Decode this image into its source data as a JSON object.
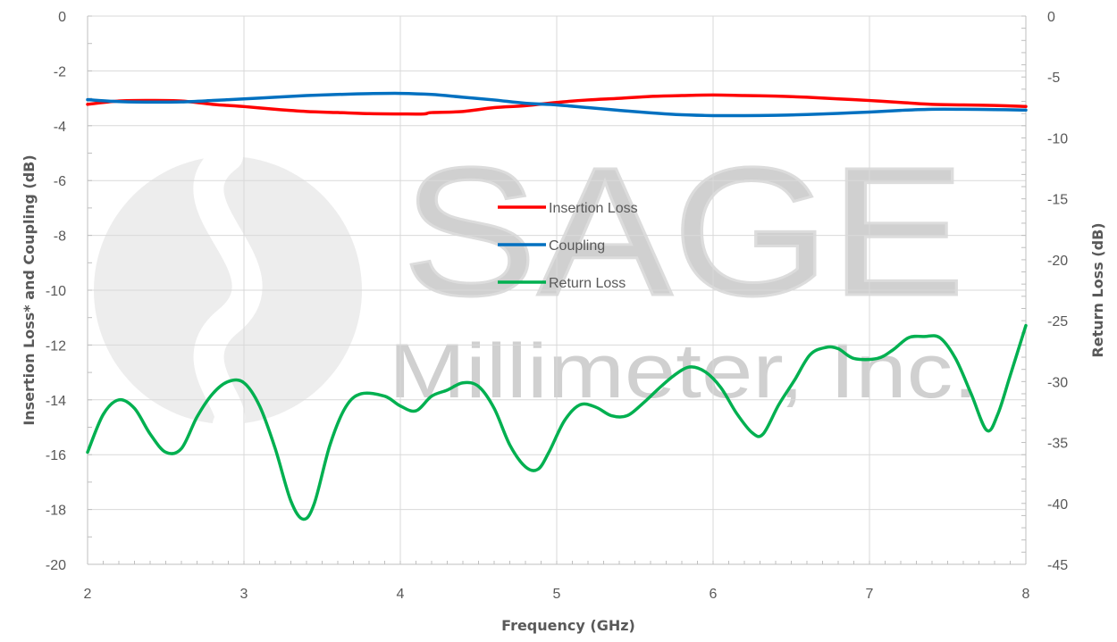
{
  "chart_data": {
    "type": "line",
    "watermark": {
      "line1": "SAGE",
      "line2": "Millimeter, Inc.",
      "color": "#d3d3d3"
    },
    "xlabel": "Frequency (GHz)",
    "ylabel_left": "Insertion Loss* and Coupling (dB)",
    "ylabel_right": "Return Loss (dB)",
    "xlim": [
      2,
      8
    ],
    "ylim_left": [
      -20,
      0
    ],
    "ylim_right": [
      -45,
      0
    ],
    "x_ticks": [
      2,
      3,
      4,
      5,
      6,
      7,
      8
    ],
    "y_left_ticks": [
      0,
      -2,
      -4,
      -6,
      -8,
      -10,
      -12,
      -14,
      -16,
      -18,
      -20
    ],
    "y_right_ticks": [
      0,
      -5,
      -10,
      -15,
      -20,
      -25,
      -30,
      -35,
      -40,
      -45
    ],
    "grid": true,
    "legend_position": "center",
    "series": [
      {
        "name": "Insertion Loss",
        "axis": "left",
        "color": "#ff0000",
        "points": [
          [
            2.0,
            -3.22
          ],
          [
            2.2,
            -3.1
          ],
          [
            2.4,
            -3.08
          ],
          [
            2.6,
            -3.1
          ],
          [
            2.8,
            -3.22
          ],
          [
            3.0,
            -3.3
          ],
          [
            3.2,
            -3.4
          ],
          [
            3.4,
            -3.48
          ],
          [
            3.6,
            -3.52
          ],
          [
            3.8,
            -3.56
          ],
          [
            4.0,
            -3.57
          ],
          [
            4.15,
            -3.57
          ],
          [
            4.2,
            -3.52
          ],
          [
            4.4,
            -3.48
          ],
          [
            4.6,
            -3.34
          ],
          [
            4.8,
            -3.27
          ],
          [
            5.0,
            -3.15
          ],
          [
            5.2,
            -3.06
          ],
          [
            5.4,
            -3.0
          ],
          [
            5.6,
            -2.93
          ],
          [
            5.8,
            -2.9
          ],
          [
            6.0,
            -2.88
          ],
          [
            6.2,
            -2.9
          ],
          [
            6.4,
            -2.92
          ],
          [
            6.6,
            -2.96
          ],
          [
            6.8,
            -3.02
          ],
          [
            7.0,
            -3.08
          ],
          [
            7.2,
            -3.15
          ],
          [
            7.4,
            -3.22
          ],
          [
            7.6,
            -3.24
          ],
          [
            7.8,
            -3.26
          ],
          [
            8.0,
            -3.3
          ]
        ]
      },
      {
        "name": "Coupling",
        "axis": "left",
        "color": "#0070c0",
        "points": [
          [
            2.0,
            -3.05
          ],
          [
            2.2,
            -3.12
          ],
          [
            2.4,
            -3.14
          ],
          [
            2.6,
            -3.13
          ],
          [
            2.8,
            -3.08
          ],
          [
            3.0,
            -3.02
          ],
          [
            3.2,
            -2.96
          ],
          [
            3.4,
            -2.9
          ],
          [
            3.6,
            -2.86
          ],
          [
            3.8,
            -2.83
          ],
          [
            4.0,
            -2.82
          ],
          [
            4.2,
            -2.86
          ],
          [
            4.4,
            -2.96
          ],
          [
            4.6,
            -3.06
          ],
          [
            4.8,
            -3.18
          ],
          [
            5.0,
            -3.24
          ],
          [
            5.2,
            -3.34
          ],
          [
            5.4,
            -3.44
          ],
          [
            5.6,
            -3.53
          ],
          [
            5.8,
            -3.6
          ],
          [
            6.0,
            -3.63
          ],
          [
            6.2,
            -3.63
          ],
          [
            6.4,
            -3.62
          ],
          [
            6.6,
            -3.59
          ],
          [
            6.8,
            -3.55
          ],
          [
            7.0,
            -3.5
          ],
          [
            7.2,
            -3.44
          ],
          [
            7.4,
            -3.4
          ],
          [
            7.6,
            -3.4
          ],
          [
            7.8,
            -3.41
          ],
          [
            8.0,
            -3.43
          ]
        ]
      },
      {
        "name": "Return Loss",
        "axis": "right",
        "color": "#00b050",
        "points": [
          [
            2.0,
            -35.8
          ],
          [
            2.1,
            -32.7
          ],
          [
            2.2,
            -31.5
          ],
          [
            2.3,
            -32.2
          ],
          [
            2.4,
            -34.3
          ],
          [
            2.5,
            -35.8
          ],
          [
            2.6,
            -35.5
          ],
          [
            2.7,
            -32.9
          ],
          [
            2.8,
            -31.0
          ],
          [
            2.9,
            -30.0
          ],
          [
            3.0,
            -30.1
          ],
          [
            3.1,
            -32.0
          ],
          [
            3.2,
            -35.5
          ],
          [
            3.3,
            -39.8
          ],
          [
            3.38,
            -41.3
          ],
          [
            3.45,
            -40.0
          ],
          [
            3.55,
            -35.2
          ],
          [
            3.65,
            -32.1
          ],
          [
            3.75,
            -31.0
          ],
          [
            3.9,
            -31.2
          ],
          [
            4.0,
            -32.0
          ],
          [
            4.1,
            -32.4
          ],
          [
            4.2,
            -31.2
          ],
          [
            4.3,
            -30.7
          ],
          [
            4.4,
            -30.1
          ],
          [
            4.5,
            -30.4
          ],
          [
            4.6,
            -32.2
          ],
          [
            4.7,
            -35.2
          ],
          [
            4.8,
            -37.0
          ],
          [
            4.88,
            -37.2
          ],
          [
            4.95,
            -35.8
          ],
          [
            5.05,
            -33.2
          ],
          [
            5.15,
            -31.9
          ],
          [
            5.25,
            -32.1
          ],
          [
            5.35,
            -32.8
          ],
          [
            5.45,
            -32.8
          ],
          [
            5.55,
            -31.8
          ],
          [
            5.65,
            -30.6
          ],
          [
            5.75,
            -29.5
          ],
          [
            5.85,
            -28.8
          ],
          [
            5.95,
            -29.2
          ],
          [
            6.05,
            -30.5
          ],
          [
            6.15,
            -32.6
          ],
          [
            6.25,
            -34.2
          ],
          [
            6.32,
            -34.3
          ],
          [
            6.42,
            -31.9
          ],
          [
            6.52,
            -29.9
          ],
          [
            6.62,
            -27.8
          ],
          [
            6.72,
            -27.2
          ],
          [
            6.8,
            -27.3
          ],
          [
            6.9,
            -28.1
          ],
          [
            7.05,
            -28.1
          ],
          [
            7.15,
            -27.4
          ],
          [
            7.25,
            -26.4
          ],
          [
            7.35,
            -26.3
          ],
          [
            7.45,
            -26.4
          ],
          [
            7.55,
            -28.1
          ],
          [
            7.65,
            -31.0
          ],
          [
            7.75,
            -34.0
          ],
          [
            7.82,
            -32.7
          ],
          [
            7.9,
            -29.5
          ],
          [
            8.0,
            -25.4
          ]
        ]
      }
    ]
  }
}
